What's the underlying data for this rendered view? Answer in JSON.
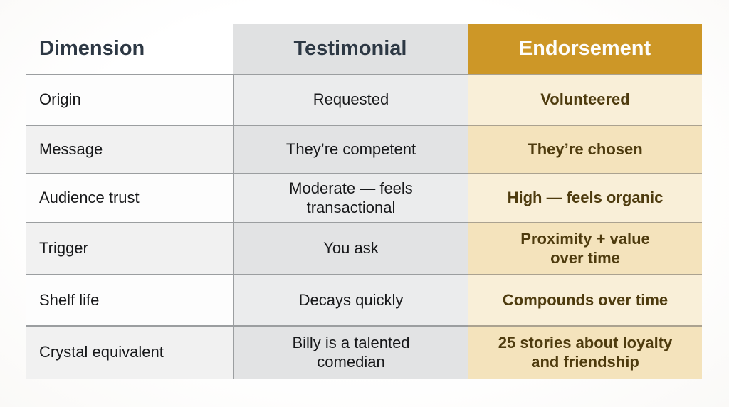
{
  "table": {
    "columns": [
      "Dimension",
      "Testimonial",
      "Endorsement"
    ],
    "rows": [
      {
        "dimension": "Origin",
        "testimonial": "Requested",
        "endorsement": "Volunteered"
      },
      {
        "dimension": "Message",
        "testimonial": "They’re competent",
        "endorsement": "They’re chosen"
      },
      {
        "dimension": "Audience trust",
        "testimonial": "Moderate — feels\ntransactional",
        "endorsement": "High — feels organic"
      },
      {
        "dimension": "Trigger",
        "testimonial": "You ask",
        "endorsement": "Proximity + value\nover time"
      },
      {
        "dimension": "Shelf life",
        "testimonial": "Decays quickly",
        "endorsement": "Compounds over time"
      },
      {
        "dimension": "Crystal equivalent",
        "testimonial": "Billy is a talented\ncomedian",
        "endorsement": "25 stories about loyalty\nand friendship"
      }
    ],
    "colors": {
      "endorsement_header_bg": "#cd9727",
      "endorsement_header_text": "#fdfdfc",
      "testimonial_header_bg": "#e0e1e2",
      "header_text": "#2d3844",
      "body_text": "#17181a",
      "endorsement_text": "#4e3b0e",
      "endorsement_row_light": "#f9efd8",
      "endorsement_row_dark": "#f4e3bc",
      "testimonial_row_light": "#ebeced",
      "testimonial_row_dark": "#e2e3e4"
    }
  }
}
